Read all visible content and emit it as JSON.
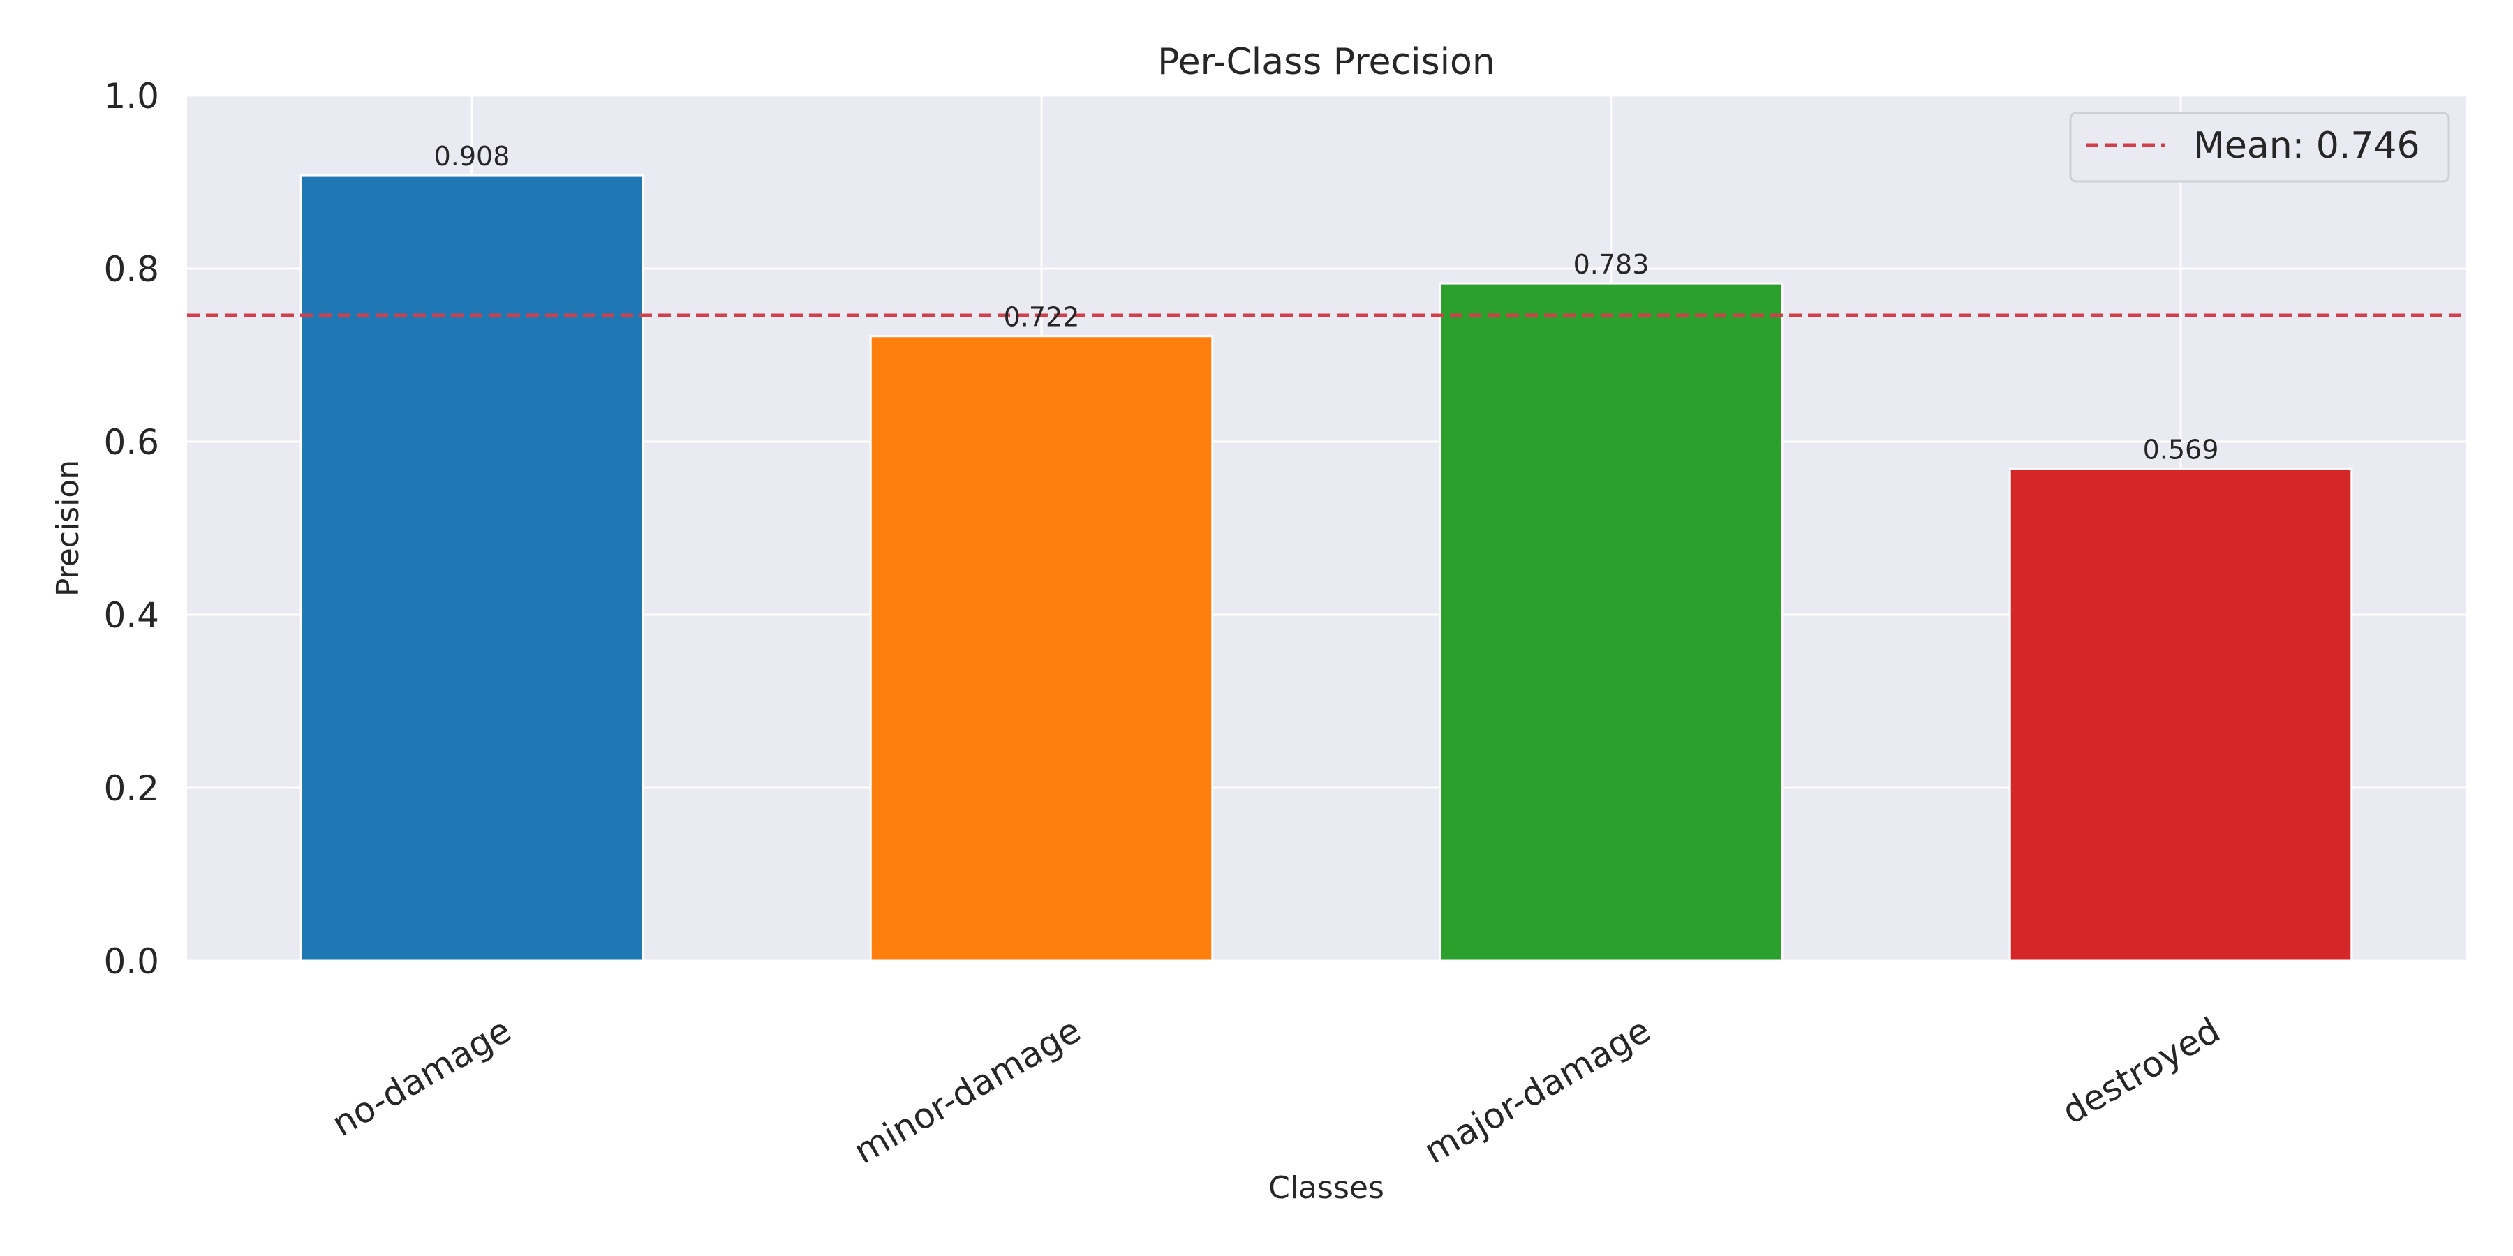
{
  "chart_data": {
    "type": "bar",
    "title": "Per-Class Precision",
    "xlabel": "Classes",
    "ylabel": "Precision",
    "categories": [
      "no-damage",
      "minor-damage",
      "major-damage",
      "destroyed"
    ],
    "values": [
      0.908,
      0.722,
      0.783,
      0.569
    ],
    "value_labels": [
      "0.908",
      "0.722",
      "0.783",
      "0.569"
    ],
    "colors": [
      "#1f77b4",
      "#ff7f0e",
      "#2ca02c",
      "#d62728"
    ],
    "ylim": [
      0,
      1.0
    ],
    "yticks": [
      0.0,
      0.2,
      0.4,
      0.6,
      0.8,
      1.0
    ],
    "ytick_labels": [
      "0.0",
      "0.2",
      "0.4",
      "0.6",
      "0.8",
      "1.0"
    ],
    "grid": true,
    "mean_line": {
      "value": 0.746,
      "label": "Mean: 0.746",
      "color": "#d1404a",
      "style": "dashed"
    },
    "legend_position": "top-right",
    "background_color": "#eaeaf2",
    "grid_color": "#ffffff"
  }
}
